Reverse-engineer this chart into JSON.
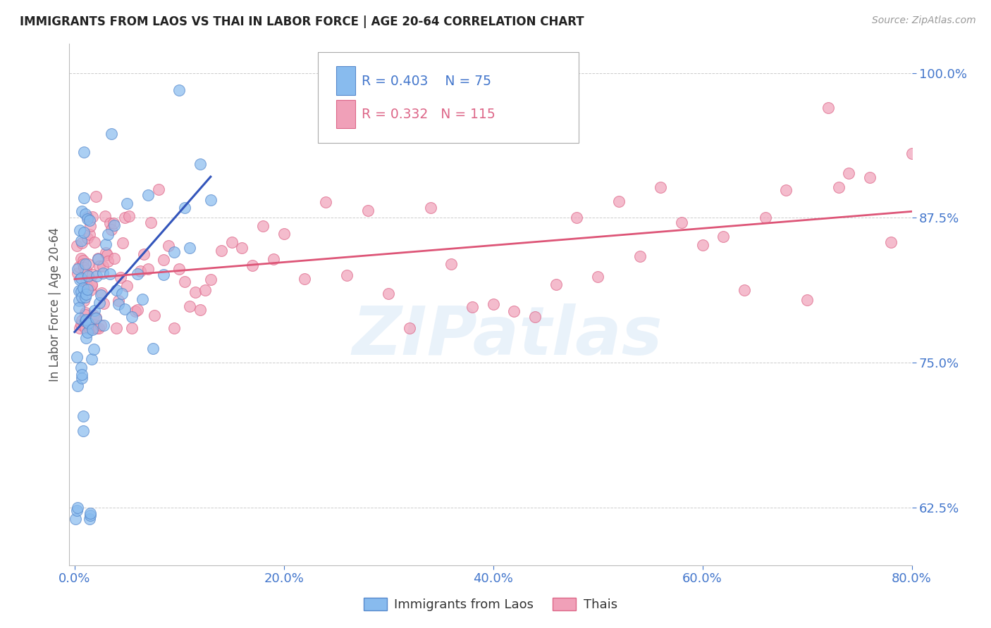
{
  "title": "IMMIGRANTS FROM LAOS VS THAI IN LABOR FORCE | AGE 20-64 CORRELATION CHART",
  "source": "Source: ZipAtlas.com",
  "ylabel": "In Labor Force | Age 20-64",
  "xlim": [
    -0.005,
    0.8
  ],
  "ylim": [
    0.575,
    1.025
  ],
  "xticks": [
    0.0,
    0.2,
    0.4,
    0.6,
    0.8
  ],
  "xtick_labels": [
    "0.0%",
    "20.0%",
    "40.0%",
    "60.0%",
    "80.0%"
  ],
  "yticks": [
    0.625,
    0.75,
    0.875,
    1.0
  ],
  "ytick_labels": [
    "62.5%",
    "75.0%",
    "87.5%",
    "100.0%"
  ],
  "laos_R": 0.403,
  "laos_N": 75,
  "thai_R": 0.332,
  "thai_N": 115,
  "laos_color": "#88bbee",
  "laos_edge": "#5588cc",
  "thai_color": "#f0a0b8",
  "thai_edge": "#dd6688",
  "trend_laos_color": "#3355bb",
  "trend_thai_color": "#dd5577",
  "legend_label_laos": "Immigrants from Laos",
  "legend_label_thai": "Thais",
  "watermark": "ZIPatlas",
  "tick_color": "#4477cc",
  "label_color": "#555555"
}
